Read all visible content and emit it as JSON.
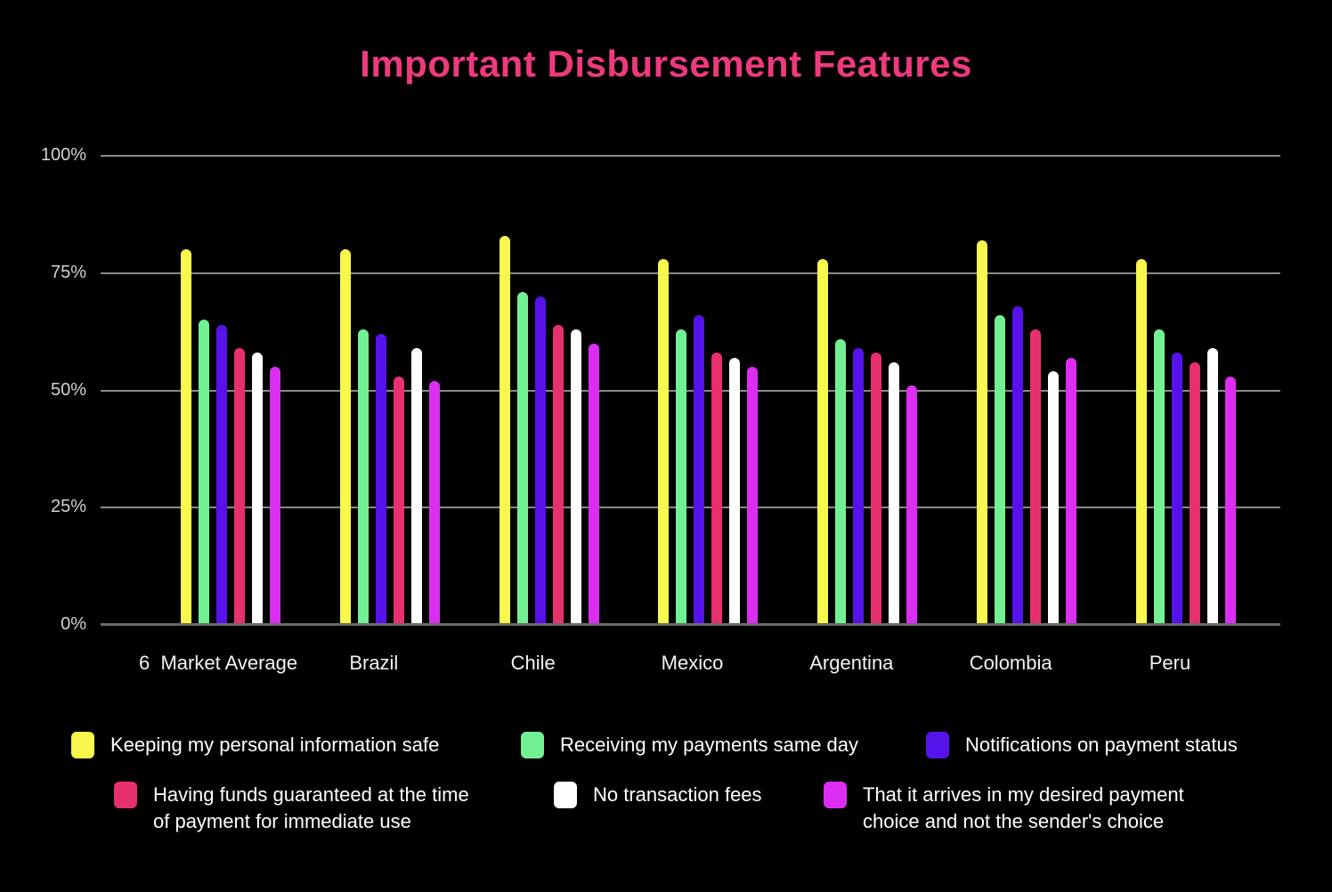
{
  "chart_data": {
    "type": "bar",
    "title": "Important Disbursement Features",
    "title_color": "#ED3A7E",
    "background_color": "#000000",
    "grid": true,
    "gridline_color": "#8a8a8a",
    "legend_position": "bottom",
    "ylim": [
      0,
      100
    ],
    "y_ticks": [
      "100%",
      "75%",
      "50%",
      "25%",
      "0%"
    ],
    "categories": [
      "6  Market Average",
      "Brazil",
      "Chile",
      "Mexico",
      "Argentina",
      "Colombia",
      "Peru"
    ],
    "series": [
      {
        "name": "Keeping my personal information safe",
        "color": "#F7F74E",
        "values": [
          80,
          80,
          83,
          78,
          78,
          82,
          78
        ]
      },
      {
        "name": "Receiving my payments same day",
        "color": "#71F193",
        "values": [
          65,
          63,
          71,
          63,
          61,
          66,
          63
        ]
      },
      {
        "name": "Notifications on payment status",
        "color": "#5513EA",
        "values": [
          64,
          62,
          70,
          66,
          59,
          68,
          58
        ]
      },
      {
        "name": "Having funds guaranteed at the time of payment for immediate use",
        "color": "#E9306F",
        "values": [
          59,
          53,
          64,
          58,
          58,
          63,
          56
        ]
      },
      {
        "name": "No transaction fees",
        "color": "#FFFFFF",
        "values": [
          58,
          59,
          63,
          57,
          56,
          54,
          59
        ]
      },
      {
        "name": "That it arrives in my desired payment choice and not the sender's choice",
        "color": "#DC2EF2",
        "values": [
          55,
          52,
          60,
          55,
          51,
          57,
          53
        ]
      }
    ],
    "legend_rows": [
      [
        {
          "series": 0,
          "lines": [
            "Keeping my personal information safe"
          ]
        },
        {
          "series": 1,
          "lines": [
            "Receiving my payments same day"
          ]
        },
        {
          "series": 2,
          "lines": [
            "Notifications on payment status"
          ]
        }
      ],
      [
        {
          "series": 3,
          "lines": [
            "Having funds guaranteed at the time",
            "of payment for immediate use"
          ]
        },
        {
          "series": 4,
          "lines": [
            "No transaction fees"
          ]
        },
        {
          "series": 5,
          "lines": [
            "That it arrives in my desired payment",
            "choice and not the sender's choice"
          ]
        }
      ]
    ]
  }
}
